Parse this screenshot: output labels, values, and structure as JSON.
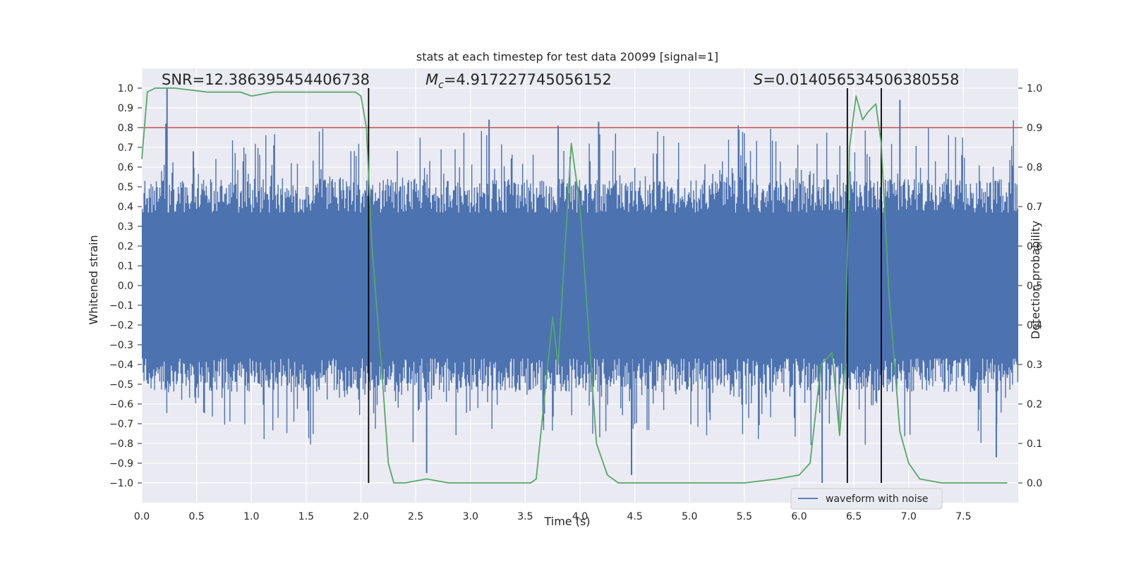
{
  "chart_data": {
    "type": "line",
    "title": "stats at each timestep for test data 20099 [signal=1]",
    "xlabel": "Time (s)",
    "ylabel_left": "Whitened strain",
    "ylabel_right": "Detection probability",
    "xlim": [
      0,
      8
    ],
    "ylim_left": [
      -1.1,
      1.1
    ],
    "ylim_right": [
      -0.05,
      1.05
    ],
    "x_ticks": [
      "0.0",
      "0.5",
      "1.0",
      "1.5",
      "2.0",
      "2.5",
      "3.0",
      "3.5",
      "4.0",
      "4.5",
      "5.0",
      "5.5",
      "6.0",
      "6.5",
      "7.0",
      "7.5"
    ],
    "left_ticks": [
      "1.0",
      "0.9",
      "0.8",
      "0.7",
      "0.6",
      "0.5",
      "0.4",
      "0.3",
      "0.2",
      "0.1",
      "0.0",
      "−0.1",
      "−0.2",
      "−0.3",
      "−0.4",
      "−0.5",
      "−0.6",
      "−0.7",
      "−0.8",
      "−0.9",
      "−1.0"
    ],
    "right_ticks": [
      "1.0",
      "0.9",
      "0.8",
      "0.7",
      "0.6",
      "0.5",
      "0.4",
      "0.3",
      "0.2",
      "0.1",
      "0.0"
    ],
    "grid": true,
    "annotations": {
      "snr": "SNR=12.386395454406738",
      "mc_symbol": "M",
      "mc_sub": "c",
      "mc_value": "=4.917227745056152",
      "s_symbol": "S",
      "s_value": "=0.014056534506380558"
    },
    "threshold_left": 0.8,
    "vertical_lines_x": [
      2.07,
      6.44,
      6.75
    ],
    "legend": {
      "label": "waveform with noise",
      "position": "lower-right"
    },
    "series": [
      {
        "name": "waveform with noise",
        "axis": "left",
        "color": "#4c72b0",
        "style": "noise-band",
        "typical_envelope": 0.4,
        "peaks": [
          {
            "x": 0.22,
            "y": 0.82
          },
          {
            "x": 0.23,
            "y": 1.0
          },
          {
            "x": 0.47,
            "y": 0.68
          },
          {
            "x": 2.6,
            "y": -0.95
          },
          {
            "x": 3.17,
            "y": 0.84
          },
          {
            "x": 3.8,
            "y": 0.81
          },
          {
            "x": 4.17,
            "y": 0.83
          },
          {
            "x": 4.47,
            "y": -0.96
          },
          {
            "x": 5.45,
            "y": 0.79
          },
          {
            "x": 6.21,
            "y": -1.0
          },
          {
            "x": 6.92,
            "y": 0.94
          },
          {
            "x": 7.8,
            "y": -0.87
          }
        ]
      },
      {
        "name": "",
        "axis": "right",
        "color": "#55a868",
        "x": [
          0.0,
          0.05,
          0.12,
          0.3,
          0.6,
          0.9,
          1.0,
          1.2,
          1.5,
          1.8,
          1.95,
          2.0,
          2.05,
          2.1,
          2.2,
          2.25,
          2.3,
          2.4,
          2.6,
          2.8,
          3.0,
          3.3,
          3.55,
          3.6,
          3.75,
          3.8,
          3.92,
          4.0,
          4.15,
          4.25,
          4.35,
          4.5,
          5.0,
          5.5,
          5.8,
          6.0,
          6.1,
          6.2,
          6.3,
          6.37,
          6.42,
          6.46,
          6.52,
          6.58,
          6.63,
          6.7,
          6.75,
          6.82,
          6.92,
          7.0,
          7.1,
          7.3,
          7.6,
          7.9
        ],
        "y": [
          0.82,
          0.99,
          1.0,
          1.0,
          0.99,
          0.99,
          0.98,
          0.99,
          0.99,
          0.99,
          0.99,
          0.98,
          0.9,
          0.6,
          0.25,
          0.05,
          0.0,
          0.0,
          0.01,
          0.0,
          0.0,
          0.0,
          0.0,
          0.01,
          0.42,
          0.3,
          0.86,
          0.7,
          0.1,
          0.02,
          0.0,
          0.0,
          0.0,
          0.0,
          0.01,
          0.02,
          0.05,
          0.3,
          0.33,
          0.12,
          0.3,
          0.85,
          0.98,
          0.92,
          0.94,
          0.96,
          0.86,
          0.48,
          0.13,
          0.05,
          0.01,
          0.0,
          0.0,
          0.0
        ]
      }
    ]
  }
}
